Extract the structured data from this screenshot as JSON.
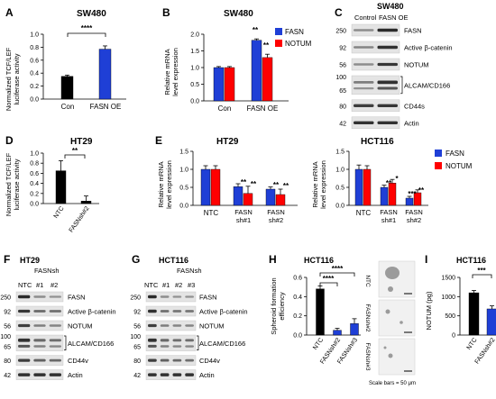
{
  "colors": {
    "blue": "#1f3fd6",
    "red": "#ff0000",
    "black": "#000000"
  },
  "panels": {
    "A": {
      "letter": "A",
      "title": "SW480",
      "ylabel": [
        "Normalized TCF/LEF",
        "luciferase activity"
      ],
      "yticks": [
        "0.0",
        "0.2",
        "0.4",
        "0.6",
        "0.8",
        "1.0"
      ],
      "sig": "****"
    },
    "B": {
      "letter": "B",
      "title": "SW480",
      "ylabel": [
        "Relative mRNA",
        "level expression"
      ],
      "yticks": [
        "0.0",
        "0.5",
        "1.0",
        "1.5",
        "2.0"
      ],
      "legend": [
        "FASN",
        "NOTUM"
      ],
      "sig": [
        "**",
        "**"
      ]
    },
    "C": {
      "letter": "C",
      "title": "SW480",
      "cols": [
        "Control",
        "FASN OE"
      ],
      "mw": [
        "250",
        "92",
        "56",
        "100",
        "65",
        "80",
        "42"
      ],
      "proteins": [
        "FASN",
        "Active β-catenin",
        "NOTUM",
        "ALCAM/CD166",
        "CD44s",
        "Actin"
      ]
    },
    "D": {
      "letter": "D",
      "title": "HT29",
      "ylabel": [
        "Normalized TCF/LEF",
        "luciferase activity"
      ],
      "yticks": [
        "0.0",
        "0.2",
        "0.4",
        "0.6",
        "0.8",
        "1.0"
      ],
      "sig": "**"
    },
    "E1": {
      "letter": "E",
      "title": "HT29",
      "ylabel": [
        "Relative mRNA",
        "level expression"
      ],
      "yticks": [
        "0.0",
        "0.5",
        "1.0",
        "1.5"
      ],
      "sig": [
        "**",
        "**",
        "**",
        "**"
      ]
    },
    "E2": {
      "title": "HCT116",
      "ylabel": [
        "Relative mRNA",
        "level expression"
      ],
      "yticks": [
        "0.0",
        "0.5",
        "1.0",
        "1.5"
      ],
      "legend": [
        "FASN",
        "NOTUM"
      ],
      "sig": [
        "**",
        "*",
        "***",
        "**"
      ]
    },
    "F": {
      "letter": "F",
      "title": "HT29",
      "group": "FASNsh",
      "cols": [
        "NTC",
        "#1",
        "#2"
      ],
      "mw": [
        "250",
        "92",
        "56",
        "100",
        "65",
        "80",
        "42"
      ],
      "proteins": [
        "FASN",
        "Active β-catenin",
        "NOTUM",
        "ALCAM/CD166",
        "CD44v",
        "Actin"
      ]
    },
    "G": {
      "letter": "G",
      "title": "HCT116",
      "group": "FASNsh",
      "cols": [
        "NTC",
        "#1",
        "#2",
        "#3"
      ],
      "mw": [
        "250",
        "92",
        "56",
        "100",
        "65",
        "80",
        "42"
      ],
      "proteins": [
        "FASN",
        "Active β-catenin",
        "NOTUM",
        "ALCAM/CD166",
        "CD44v",
        "Actin"
      ]
    },
    "H": {
      "letter": "H",
      "title": "HCT116",
      "ylabel": [
        "Spheroid formation",
        "efficiency"
      ],
      "yticks": [
        "0.0",
        "0.2",
        "0.4",
        "0.6"
      ],
      "sig": [
        "****",
        "****"
      ],
      "image_labels": [
        "NTC",
        "FASNsh#2",
        "FASNsh#3"
      ],
      "scale_note": "Scale bars = 50 μm"
    },
    "I": {
      "letter": "I",
      "title": "HCT116",
      "ylabel": [
        "NOTUM (pg)"
      ],
      "yticks": [
        "0",
        "500",
        "1000",
        "1500"
      ],
      "sig": "***"
    }
  },
  "chart_data": [
    {
      "panel": "A",
      "type": "bar",
      "title": "SW480",
      "ylabel": "Normalized TCF/LEF luciferase activity",
      "categories": [
        "Con",
        "FASN OE"
      ],
      "values": [
        0.35,
        0.77
      ],
      "errors": [
        0.02,
        0.05
      ],
      "ylim": [
        0,
        1.0
      ],
      "colors": [
        "#000000",
        "#1f3fd6"
      ]
    },
    {
      "panel": "B",
      "type": "bar",
      "title": "SW480",
      "ylabel": "Relative mRNA level expression",
      "categories": [
        "Con",
        "FASN OE"
      ],
      "ylim": [
        0,
        2.0
      ],
      "series": [
        {
          "name": "FASN",
          "values": [
            1.0,
            1.82
          ],
          "errors": [
            0.03,
            0.04
          ]
        },
        {
          "name": "NOTUM",
          "values": [
            1.0,
            1.3
          ],
          "errors": [
            0.03,
            0.1
          ]
        }
      ]
    },
    {
      "panel": "D",
      "type": "bar",
      "title": "HT29",
      "ylabel": "Normalized TCF/LEF luciferase activity",
      "categories": [
        "NTC",
        "FASNsh#2"
      ],
      "values": [
        0.65,
        0.05
      ],
      "errors": [
        0.2,
        0.1
      ],
      "ylim": [
        0,
        1.0
      ]
    },
    {
      "panel": "E",
      "type": "bar",
      "title": "HT29",
      "ylabel": "Relative mRNA level expression",
      "categories": [
        "NTC",
        "FASN sh#1",
        "FASN sh#2"
      ],
      "ylim": [
        0,
        1.5
      ],
      "series": [
        {
          "name": "FASN",
          "values": [
            1.0,
            0.52,
            0.45
          ],
          "errors": [
            0.1,
            0.08,
            0.06
          ]
        },
        {
          "name": "NOTUM",
          "values": [
            1.0,
            0.33,
            0.3
          ],
          "errors": [
            0.1,
            0.2,
            0.15
          ]
        }
      ]
    },
    {
      "panel": "E",
      "type": "bar",
      "title": "HCT116",
      "ylabel": "Relative mRNA level expression",
      "categories": [
        "NTC",
        "FASN sh#1",
        "FASN sh#2"
      ],
      "ylim": [
        0,
        1.5
      ],
      "series": [
        {
          "name": "FASN",
          "values": [
            1.0,
            0.5,
            0.2
          ],
          "errors": [
            0.12,
            0.06,
            0.05
          ]
        },
        {
          "name": "NOTUM",
          "values": [
            1.0,
            0.62,
            0.35
          ],
          "errors": [
            0.1,
            0.1,
            0.08
          ]
        }
      ]
    },
    {
      "panel": "H",
      "type": "bar",
      "title": "HCT116",
      "ylabel": "Spheroid formation efficiency",
      "categories": [
        "NTC",
        "FASNsh#2",
        "FASNsh#3"
      ],
      "values": [
        0.48,
        0.05,
        0.12
      ],
      "errors": [
        0.03,
        0.02,
        0.05
      ],
      "ylim": [
        0,
        0.6
      ]
    },
    {
      "panel": "I",
      "type": "bar",
      "title": "HCT116",
      "ylabel": "NOTUM (pg)",
      "categories": [
        "NTC",
        "FASNsh#2"
      ],
      "values": [
        1100,
        680
      ],
      "errors": [
        60,
        80
      ],
      "ylim": [
        0,
        1500
      ]
    }
  ],
  "blots": {
    "C": [
      [
        0.3,
        1.0
      ],
      [
        0.35,
        0.95
      ],
      [
        0.3,
        0.9
      ],
      [
        0.4,
        0.95
      ],
      [
        0.85,
        0.9
      ],
      [
        0.95,
        0.95
      ]
    ],
    "F": [
      [
        1.0,
        0.3,
        0.25
      ],
      [
        0.9,
        0.55,
        0.5
      ],
      [
        0.85,
        0.4,
        0.35
      ],
      [
        0.95,
        0.55,
        0.5
      ],
      [
        0.85,
        0.6,
        0.55
      ],
      [
        0.95,
        0.95,
        0.95
      ]
    ],
    "G": [
      [
        1.0,
        0.3,
        0.25,
        0.25
      ],
      [
        0.95,
        0.5,
        0.45,
        0.45
      ],
      [
        0.85,
        0.4,
        0.35,
        0.35
      ],
      [
        0.95,
        0.55,
        0.5,
        0.5
      ],
      [
        0.85,
        0.6,
        0.55,
        0.5
      ],
      [
        0.95,
        0.95,
        0.95,
        0.95
      ]
    ]
  }
}
